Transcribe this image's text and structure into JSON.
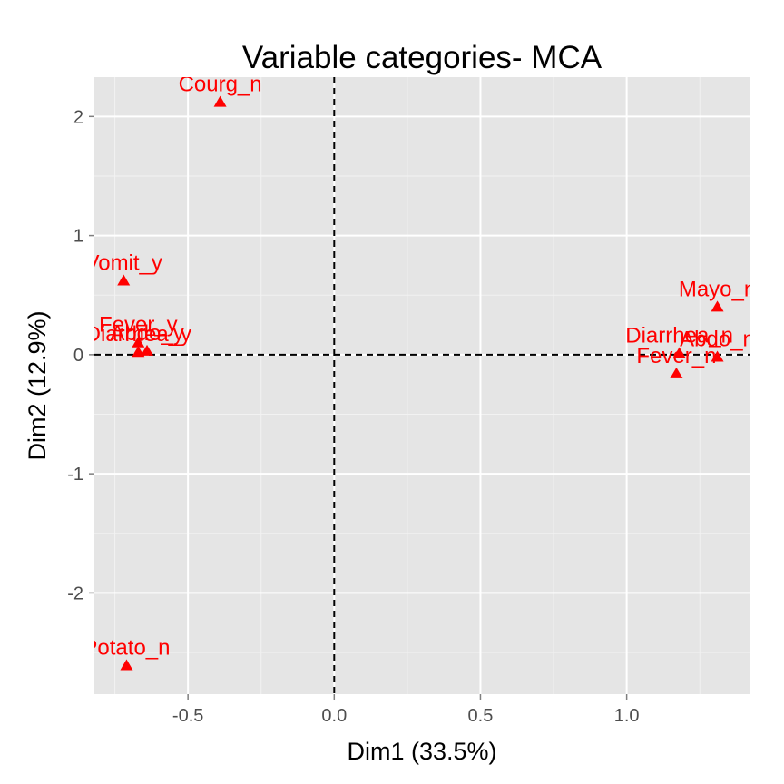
{
  "chart_data": {
    "type": "scatter",
    "title": "Variable categories- MCA",
    "xlabel": "Dim1 (33.5%)",
    "ylabel": "Dim2 (12.9%)",
    "xlim": [
      -0.82,
      1.42
    ],
    "ylim": [
      -2.85,
      2.33
    ],
    "x_ticks": [
      -0.5,
      0.0,
      0.5,
      1.0
    ],
    "x_tick_labels": [
      "-0.5",
      "0.0",
      "0.5",
      "1.0"
    ],
    "y_ticks": [
      -2,
      -1,
      0,
      1,
      2
    ],
    "y_tick_labels": [
      "-2",
      "-1",
      "0",
      "1",
      "2"
    ],
    "grid": true,
    "reference_lines": [
      {
        "axis": "x",
        "value": 0,
        "style": "dashed"
      },
      {
        "axis": "y",
        "value": 0,
        "style": "dashed"
      }
    ],
    "point_color": "#ff0000",
    "point_shape": "triangle",
    "points": [
      {
        "label": "Courg_n",
        "x": -0.39,
        "y": 2.12
      },
      {
        "label": "Vomit_y",
        "x": -0.72,
        "y": 0.62
      },
      {
        "label": "Fever_y",
        "x": -0.67,
        "y": 0.1
      },
      {
        "label": "Diarrhea_y",
        "x": -0.67,
        "y": 0.02
      },
      {
        "label": "Abdo_y",
        "x": -0.64,
        "y": 0.03
      },
      {
        "label": "Potato_n",
        "x": -0.71,
        "y": -2.61
      },
      {
        "label": "Mayo_n",
        "x": 1.31,
        "y": 0.4
      },
      {
        "label": "Diarrhea_n",
        "x": 1.18,
        "y": 0.01
      },
      {
        "label": "Abdo_n",
        "x": 1.31,
        "y": -0.02
      },
      {
        "label": "Fever_n",
        "x": 1.17,
        "y": -0.16
      }
    ]
  }
}
